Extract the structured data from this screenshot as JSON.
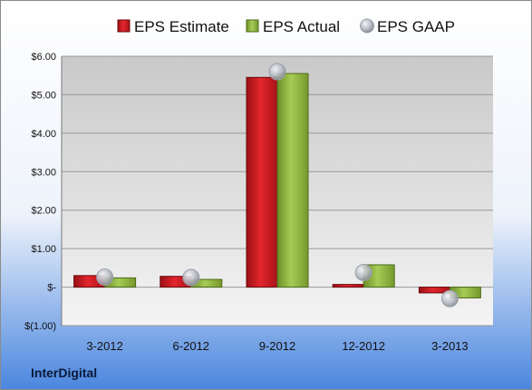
{
  "chart_data": {
    "type": "bar",
    "categories": [
      "3-2012",
      "6-2012",
      "9-2012",
      "12-2012",
      "3-2013"
    ],
    "series": [
      {
        "name": "EPS Estimate",
        "kind": "bar",
        "color": "#c8161d",
        "values": [
          0.3,
          0.28,
          5.45,
          0.07,
          -0.15
        ]
      },
      {
        "name": "EPS Actual",
        "kind": "bar",
        "color": "#8db33c",
        "values": [
          0.24,
          0.2,
          5.55,
          0.58,
          -0.28
        ]
      },
      {
        "name": "EPS GAAP",
        "kind": "marker",
        "color": "#b8bcc4",
        "values": [
          0.26,
          0.25,
          5.6,
          0.38,
          -0.3
        ]
      }
    ],
    "yticks": [
      {
        "value": 6,
        "label": "$6.00"
      },
      {
        "value": 5,
        "label": "$5.00"
      },
      {
        "value": 4,
        "label": "$4.00"
      },
      {
        "value": 3,
        "label": "$3.00"
      },
      {
        "value": 2,
        "label": "$2.00"
      },
      {
        "value": 1,
        "label": "$1.00"
      },
      {
        "value": 0,
        "label": "$-"
      },
      {
        "value": -1,
        "label": "$(1.00)"
      }
    ],
    "ylim": [
      -1,
      6
    ],
    "grid": true,
    "legend_position": "top"
  },
  "footer": {
    "company": "InterDigital"
  }
}
